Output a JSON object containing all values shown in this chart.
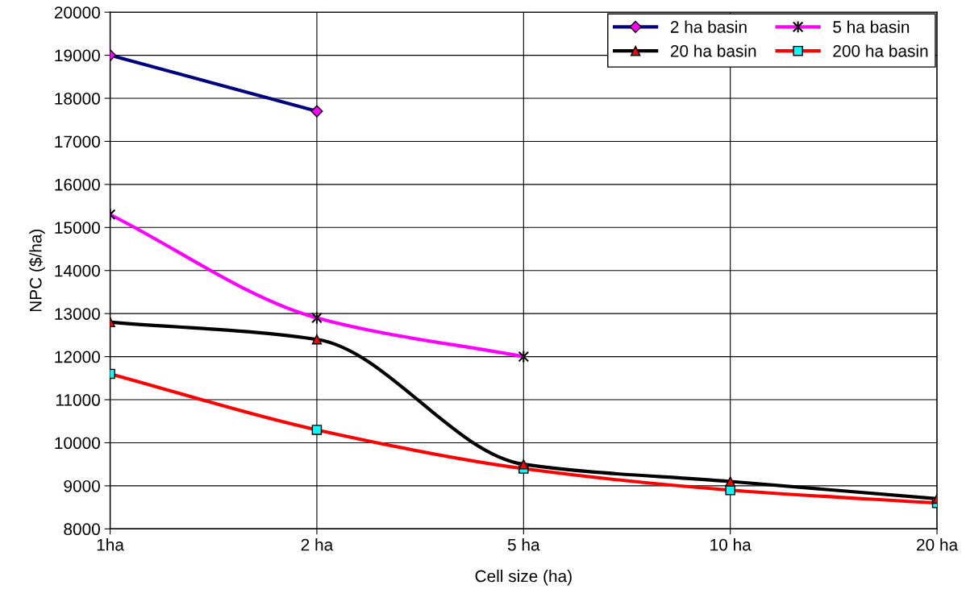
{
  "chart_data": {
    "type": "line",
    "xlabel": "Cell size (ha)",
    "ylabel": "NPC ($/ha)",
    "categories": [
      "1ha",
      "2 ha",
      "5 ha",
      "10 ha",
      "20 ha"
    ],
    "ylim": [
      8000,
      20000
    ],
    "yticks": [
      8000,
      9000,
      10000,
      11000,
      12000,
      13000,
      14000,
      15000,
      16000,
      17000,
      18000,
      19000,
      20000
    ],
    "grid": true,
    "legend": "top right",
    "line_style": "solid",
    "series": [
      {
        "name": "2 ha basin",
        "color": "#000080",
        "marker": "diamond",
        "colors": [
          "#ff00ff",
          "#ff00ff",
          null,
          null,
          null
        ],
        "values": [
          19000,
          17700,
          null,
          null,
          null
        ]
      },
      {
        "name": "5 ha basin",
        "color": "#ff00ff",
        "marker": "cross",
        "colors": [
          "#000000",
          "#000000",
          "#000000",
          null,
          null
        ],
        "values": [
          15300,
          12900,
          12000,
          null,
          null
        ]
      },
      {
        "name": "20 ha basin",
        "color": "#000000",
        "marker": "triangle",
        "colors": [
          "#ff0000",
          "#ff0000",
          "#ff0000",
          "#ff0000",
          "#ff0000"
        ],
        "values": [
          12800,
          12400,
          9500,
          9100,
          8700
        ]
      },
      {
        "name": "200 ha basin",
        "color": "#ff0000",
        "marker": "square",
        "colors": [
          "#00ffff",
          "#00ffff",
          "#00ffff",
          "#00ffff",
          "#00ffff"
        ],
        "values": [
          11600,
          10300,
          9400,
          8900,
          8600
        ]
      }
    ]
  }
}
